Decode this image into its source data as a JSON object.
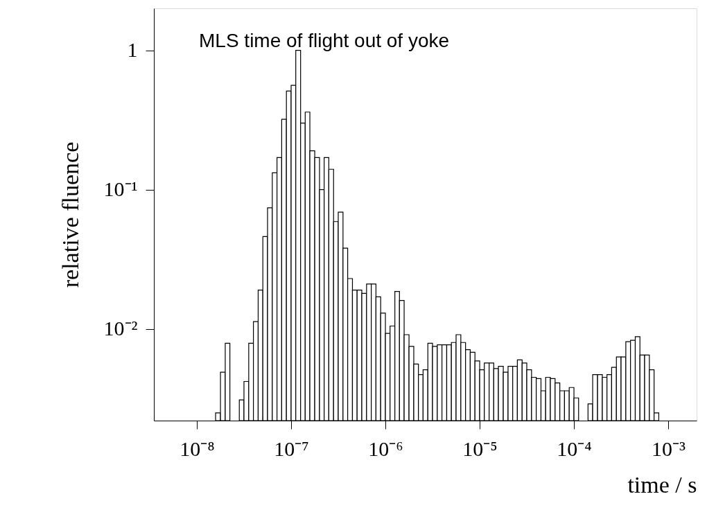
{
  "chart_data": {
    "type": "histogram",
    "title": "MLS time of flight out of yoke",
    "xlabel": "time / s",
    "ylabel": "relative fluence",
    "log": "xy",
    "grid": false,
    "color": "#000000",
    "bins": [
      1.41e-08,
      1.58e-08,
      1.78e-08,
      2e-08,
      2.24e-08,
      2.51e-08,
      2.82e-08,
      3.16e-08,
      3.55e-08,
      3.98e-08,
      4.47e-08,
      5.01e-08,
      5.62e-08,
      6.31e-08,
      7.08e-08,
      7.94e-08,
      8.91e-08,
      1e-07,
      1.12e-07,
      1.26e-07,
      1.41e-07,
      1.58e-07,
      1.78e-07,
      2e-07,
      2.24e-07,
      2.51e-07,
      2.82e-07,
      3.16e-07,
      3.55e-07,
      3.98e-07,
      4.47e-07,
      5.01e-07,
      5.62e-07,
      6.31e-07,
      7.08e-07,
      7.94e-07,
      8.91e-07,
      1e-06,
      1.12e-06,
      1.26e-06,
      1.41e-06,
      1.58e-06,
      1.78e-06,
      2e-06,
      2.24e-06,
      2.51e-06,
      2.82e-06,
      3.16e-06,
      3.55e-06,
      3.98e-06,
      4.47e-06,
      5.01e-06,
      5.62e-06,
      6.31e-06,
      7.08e-06,
      7.94e-06,
      8.91e-06,
      1e-05,
      1.12e-05,
      1.26e-05,
      1.41e-05,
      1.58e-05,
      1.78e-05,
      2e-05,
      2.24e-05,
      2.51e-05,
      2.82e-05,
      3.16e-05,
      3.55e-05,
      3.98e-05,
      4.47e-05,
      5.01e-05,
      5.62e-05,
      6.31e-05,
      7.08e-05,
      7.94e-05,
      8.91e-05,
      0.0001,
      0.000112,
      0.000126,
      0.000141,
      0.000158,
      0.000178,
      0.0002,
      0.000224,
      0.000251,
      0.000282,
      0.000316,
      0.000355,
      0.000398,
      0.000447,
      0.000501,
      0.000562,
      0.000631,
      0.000708,
      0.000794
    ],
    "values": [
      null,
      0.0025,
      0.0049,
      0.0079,
      null,
      null,
      0.0031,
      0.0042,
      0.0079,
      0.0113,
      0.019,
      0.046,
      0.074,
      0.132,
      0.17,
      0.32,
      0.51,
      0.56,
      1.0,
      0.3,
      0.36,
      0.19,
      0.17,
      0.1,
      0.17,
      0.14,
      0.059,
      0.069,
      0.038,
      0.023,
      0.019,
      0.019,
      0.018,
      0.021,
      0.021,
      0.017,
      0.013,
      0.0093,
      0.0105,
      0.0186,
      0.016,
      0.0091,
      0.0075,
      0.0056,
      0.0047,
      0.0051,
      0.0079,
      0.0075,
      0.0077,
      0.0077,
      0.0077,
      0.008,
      0.0091,
      0.008,
      0.0071,
      0.0068,
      0.0059,
      0.0051,
      0.0057,
      0.0057,
      0.0052,
      0.0054,
      0.0049,
      0.0054,
      0.0054,
      0.006,
      0.0057,
      0.0051,
      0.0045,
      0.0044,
      0.0036,
      0.0045,
      0.0044,
      0.0041,
      0.0036,
      0.0036,
      0.0038,
      0.0032,
      null,
      null,
      0.0029,
      0.0047,
      0.0047,
      0.0045,
      0.0047,
      0.0053,
      0.0063,
      0.0063,
      0.0081,
      0.0083,
      0.0088,
      0.0065,
      0.0065,
      0.0051,
      0.0025
    ],
    "xlim": [
      3.5e-09,
      0.002
    ],
    "ylim": [
      0.0022,
      2
    ],
    "xticks": [
      {
        "value": 1e-08,
        "label": "10⁻⁸"
      },
      {
        "value": 1e-07,
        "label": "10⁻⁷"
      },
      {
        "value": 1e-06,
        "label": "10⁻⁶"
      },
      {
        "value": 1e-05,
        "label": "10⁻⁵"
      },
      {
        "value": 0.0001,
        "label": "10⁻⁴"
      },
      {
        "value": 0.001,
        "label": "10⁻³"
      }
    ],
    "yticks": [
      {
        "value": 0.01,
        "label": "10⁻²"
      },
      {
        "value": 0.1,
        "label": "10⁻¹"
      },
      1
    ]
  }
}
